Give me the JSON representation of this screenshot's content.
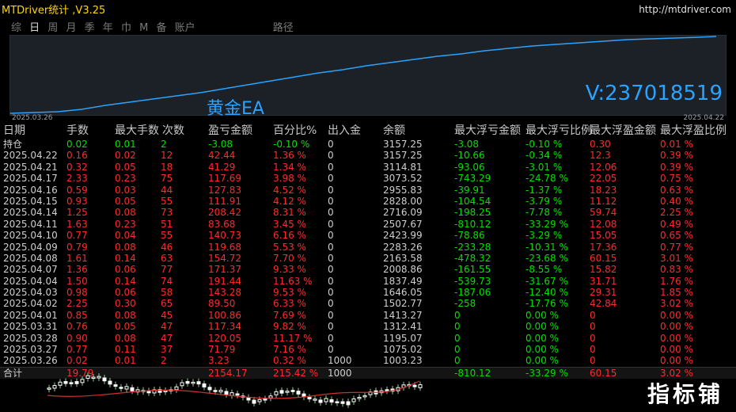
{
  "header": {
    "title": "MTDriver统计 ,V3.25",
    "url": "http://mtdriver.com"
  },
  "tabs": [
    "综",
    "日",
    "周",
    "月",
    "季",
    "年",
    "巾",
    "M",
    "备",
    "账户",
    "路径"
  ],
  "chart": {
    "name": "黄金EA",
    "account": "V:237018519",
    "date_start": "2025.03.26",
    "date_end": "2025.04.22",
    "line_color": "#29a3ff"
  },
  "table": {
    "headers": [
      "日期",
      "手数",
      "最大手数",
      "次数",
      "盈亏金额",
      "百分比%",
      "出入金",
      "余额",
      "最大浮亏金额",
      "最大浮亏比例",
      "最大浮盈金额",
      "最大浮盈比例"
    ],
    "position": [
      "持仓",
      "0.02",
      "0.01",
      "2",
      "-3.08",
      "-0.10 %",
      "0",
      "3157.25",
      "-3.08",
      "-0.10 %",
      "0.30",
      "0.01 %"
    ],
    "rows": [
      [
        "2025.04.22",
        "0.16",
        "0.02",
        "12",
        "42.44",
        "1.36 %",
        "0",
        "3157.25",
        "-10.66",
        "-0.34 %",
        "12.3",
        "0.39 %"
      ],
      [
        "2025.04.21",
        "0.32",
        "0.05",
        "18",
        "41.29",
        "1.34 %",
        "0",
        "3114.81",
        "-93.06",
        "-3.01 %",
        "12.06",
        "0.39 %"
      ],
      [
        "2025.04.17",
        "2.33",
        "0.23",
        "75",
        "117.69",
        "3.98 %",
        "0",
        "3073.52",
        "-743.29",
        "-24.78 %",
        "22.05",
        "0.75 %"
      ],
      [
        "2025.04.16",
        "0.59",
        "0.03",
        "44",
        "127.83",
        "4.52 %",
        "0",
        "2955.83",
        "-39.91",
        "-1.37 %",
        "18.23",
        "0.63 %"
      ],
      [
        "2025.04.15",
        "0.93",
        "0.05",
        "55",
        "111.91",
        "4.12 %",
        "0",
        "2828.00",
        "-104.54",
        "-3.79 %",
        "11.12",
        "0.40 %"
      ],
      [
        "2025.04.14",
        "1.25",
        "0.08",
        "73",
        "208.42",
        "8.31 %",
        "0",
        "2716.09",
        "-198.25",
        "-7.78 %",
        "59.74",
        "2.25 %"
      ],
      [
        "2025.04.11",
        "1.63",
        "0.23",
        "51",
        "83.68",
        "3.45 %",
        "0",
        "2507.67",
        "-810.12",
        "-33.29 %",
        "12.08",
        "0.49 %"
      ],
      [
        "2025.04.10",
        "0.77",
        "0.04",
        "55",
        "140.73",
        "6.16 %",
        "0",
        "2423.99",
        "-78.86",
        "-3.29 %",
        "15.05",
        "0.65 %"
      ],
      [
        "2025.04.09",
        "0.79",
        "0.08",
        "46",
        "119.68",
        "5.53 %",
        "0",
        "2283.26",
        "-233.28",
        "-10.31 %",
        "17.36",
        "0.77 %"
      ],
      [
        "2025.04.08",
        "1.61",
        "0.14",
        "63",
        "154.72",
        "7.70 %",
        "0",
        "2163.58",
        "-478.32",
        "-23.68 %",
        "60.15",
        "3.01 %"
      ],
      [
        "2025.04.07",
        "1.36",
        "0.06",
        "77",
        "171.37",
        "9.33 %",
        "0",
        "2008.86",
        "-161.55",
        "-8.55 %",
        "15.82",
        "0.83 %"
      ],
      [
        "2025.04.04",
        "1.50",
        "0.14",
        "74",
        "191.44",
        "11.63 %",
        "0",
        "1837.49",
        "-539.73",
        "-31.67 %",
        "31.71",
        "1.76 %"
      ],
      [
        "2025.04.03",
        "0.98",
        "0.06",
        "58",
        "143.28",
        "9.53 %",
        "0",
        "1646.05",
        "-187.06",
        "-12.40 %",
        "29.31",
        "1.85 %"
      ],
      [
        "2025.04.02",
        "2.25",
        "0.30",
        "65",
        "89.50",
        "6.33 %",
        "0",
        "1502.77",
        "-258",
        "-17.76 %",
        "42.84",
        "3.02 %"
      ],
      [
        "2025.04.01",
        "0.85",
        "0.08",
        "45",
        "100.86",
        "7.69 %",
        "0",
        "1413.27",
        "0",
        "0.00 %",
        "0",
        "0.00 %"
      ],
      [
        "2025.03.31",
        "0.76",
        "0.05",
        "47",
        "117.34",
        "9.82 %",
        "0",
        "1312.41",
        "0",
        "0.00 %",
        "0",
        "0.00 %"
      ],
      [
        "2025.03.28",
        "0.90",
        "0.08",
        "47",
        "120.05",
        "11.17 %",
        "0",
        "1195.07",
        "0",
        "0.00 %",
        "0",
        "0.00 %"
      ],
      [
        "2025.03.27",
        "0.77",
        "0.11",
        "37",
        "71.79",
        "7.16 %",
        "0",
        "1075.02",
        "0",
        "0.00 %",
        "0",
        "0.00 %"
      ],
      [
        "2025.03.26",
        "0.02",
        "0.01",
        "2",
        "3.23",
        "0.32 %",
        "1000",
        "1003.23",
        "0",
        "0.00 %",
        "0",
        "0.00 %"
      ]
    ],
    "total": [
      "合计",
      "19.79",
      "",
      "",
      "2154.17",
      "215.42 %",
      "1000",
      "",
      "-810.12",
      "-33.29 %",
      "60.15",
      "3.02 %"
    ]
  },
  "watermark": "指标铺",
  "colors": {
    "red": "#ff2a2a",
    "green": "#00e000",
    "title": "#ffd700"
  }
}
